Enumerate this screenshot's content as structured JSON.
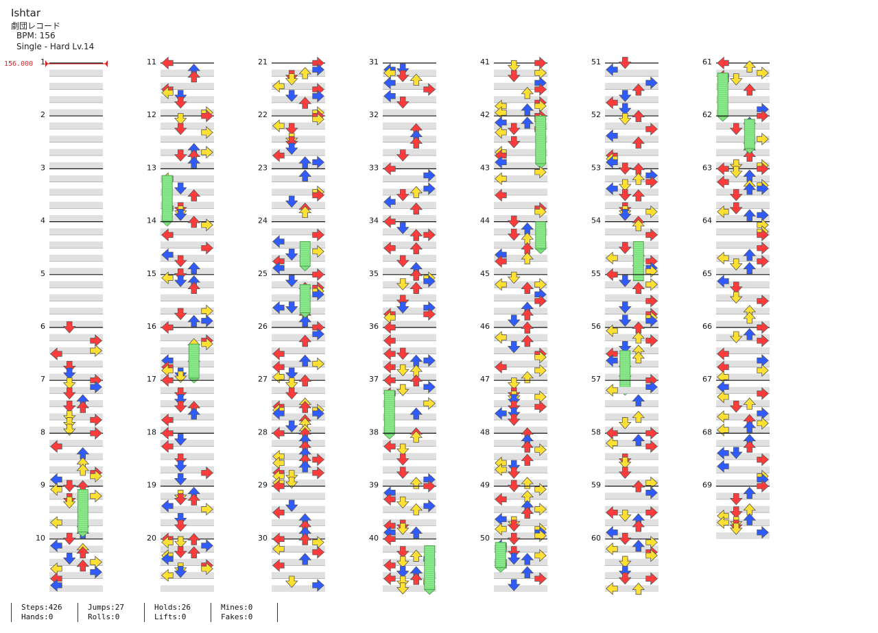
{
  "song": {
    "title": "Ishtar",
    "artist": "劇団レコード",
    "bpm_label": "BPM: 156",
    "difficulty_label": "Single - Hard  Lv.14"
  },
  "bpm_marker": "156.000",
  "colors": {
    "quarter": "#ff3b3b",
    "eighth": "#2f5bff",
    "sixteenth": "#ffe033",
    "hold": "#7ee07e",
    "beat_shade": "#e0e0e0"
  },
  "measures": [
    "1",
    "2",
    "3",
    "4",
    "5",
    "6",
    "7",
    "8",
    "9",
    "10",
    "11",
    "12",
    "13",
    "14",
    "15",
    "16",
    "17",
    "18",
    "19",
    "20",
    "21",
    "22",
    "23",
    "24",
    "25",
    "26",
    "27",
    "28",
    "29",
    "30",
    "31",
    "32",
    "33",
    "34",
    "35",
    "36",
    "37",
    "38",
    "39",
    "40",
    "41",
    "42",
    "43",
    "44",
    "45",
    "46",
    "47",
    "48",
    "49",
    "50",
    "51",
    "52",
    "53",
    "54",
    "55",
    "56",
    "57",
    "58",
    "59",
    "60",
    "61",
    "62",
    "63",
    "64",
    "65",
    "66",
    "67",
    "68",
    "69"
  ],
  "stats": {
    "steps": "Steps:426",
    "hands": "Hands:0",
    "jumps": "Jumps:27",
    "rolls": "Rolls:0",
    "holds": "Holds:26",
    "lifts": "Lifts:0",
    "mines": "Mines:0",
    "fakes": "Fakes:0"
  }
}
